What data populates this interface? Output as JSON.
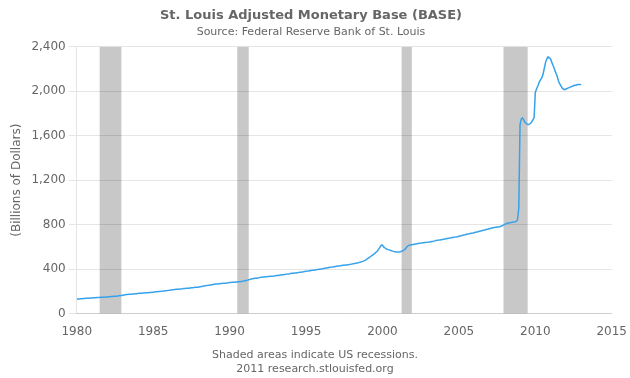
{
  "chart_data": {
    "type": "line",
    "title": "St. Louis Adjusted Monetary Base (BASE)",
    "subtitle": "Source: Federal Reserve Bank of St. Louis",
    "y_label": "(Billions of Dollars)",
    "annotations": [
      "Shaded areas indicate US recessions.",
      "2011 research.stlouisfed.org"
    ],
    "xlim": [
      1980,
      2015
    ],
    "xticks": [
      1980,
      1985,
      1990,
      1995,
      2000,
      2005,
      2010,
      2015
    ],
    "ylim": [
      0,
      2400
    ],
    "yticks": [
      0,
      400,
      800,
      {
        "value": 1200,
        "label": "1,200"
      },
      {
        "value": 1600,
        "label": "1,600"
      },
      {
        "value": 2000,
        "label": "2,000"
      },
      {
        "value": 2400,
        "label": "2,400"
      }
    ],
    "grid": "y",
    "legend": false,
    "recessions": {
      "color": "#c8c8c8",
      "ranges": [
        [
          1981.5,
          1982.92
        ],
        [
          1990.5,
          1991.25
        ],
        [
          2001.25,
          2001.92
        ],
        [
          2007.92,
          2009.5
        ]
      ]
    },
    "x": [
      1980.0,
      1980.08,
      1980.17,
      1980.25,
      1980.33,
      1980.42,
      1980.5,
      1980.58,
      1980.67,
      1980.75,
      1980.83,
      1980.92,
      1981.0,
      1981.08,
      1981.17,
      1981.25,
      1981.33,
      1981.42,
      1981.5,
      1981.58,
      1981.67,
      1981.75,
      1981.83,
      1981.92,
      1982.0,
      1982.08,
      1982.17,
      1982.25,
      1982.33,
      1982.42,
      1982.5,
      1982.58,
      1982.67,
      1982.75,
      1982.83,
      1982.92,
      1983.0,
      1983.08,
      1983.17,
      1983.25,
      1983.33,
      1983.42,
      1983.5,
      1983.58,
      1983.67,
      1983.75,
      1983.83,
      1983.92,
      1984.0,
      1984.08,
      1984.17,
      1984.25,
      1984.33,
      1984.42,
      1984.5,
      1984.58,
      1984.67,
      1984.75,
      1984.83,
      1984.92,
      1985.0,
      1985.08,
      1985.17,
      1985.25,
      1985.33,
      1985.42,
      1985.5,
      1985.58,
      1985.67,
      1985.75,
      1985.83,
      1985.92,
      1986.0,
      1986.08,
      1986.17,
      1986.25,
      1986.33,
      1986.42,
      1986.5,
      1986.58,
      1986.67,
      1986.75,
      1986.83,
      1986.92,
      1987.0,
      1987.08,
      1987.17,
      1987.25,
      1987.33,
      1987.42,
      1987.5,
      1987.58,
      1987.67,
      1987.75,
      1987.83,
      1987.92,
      1988.0,
      1988.08,
      1988.17,
      1988.25,
      1988.33,
      1988.42,
      1988.5,
      1988.58,
      1988.67,
      1988.75,
      1988.83,
      1988.92,
      1989.0,
      1989.08,
      1989.17,
      1989.25,
      1989.33,
      1989.42,
      1989.5,
      1989.58,
      1989.67,
      1989.75,
      1989.83,
      1989.92,
      1990.0,
      1990.08,
      1990.17,
      1990.25,
      1990.33,
      1990.42,
      1990.5,
      1990.58,
      1990.67,
      1990.75,
      1990.83,
      1990.92,
      1991.0,
      1991.08,
      1991.17,
      1991.25,
      1991.33,
      1991.42,
      1991.5,
      1991.58,
      1991.67,
      1991.75,
      1991.83,
      1991.92,
      1992.0,
      1992.08,
      1992.17,
      1992.25,
      1992.33,
      1992.42,
      1992.5,
      1992.58,
      1992.67,
      1992.75,
      1992.83,
      1992.92,
      1993.0,
      1993.08,
      1993.17,
      1993.25,
      1993.33,
      1993.42,
      1993.5,
      1993.58,
      1993.67,
      1993.75,
      1993.83,
      1993.92,
      1994.0,
      1994.08,
      1994.17,
      1994.25,
      1994.33,
      1994.42,
      1994.5,
      1994.58,
      1994.67,
      1994.75,
      1994.83,
      1994.92,
      1995.0,
      1995.08,
      1995.17,
      1995.25,
      1995.33,
      1995.42,
      1995.5,
      1995.58,
      1995.67,
      1995.75,
      1995.83,
      1995.92,
      1996.0,
      1996.08,
      1996.17,
      1996.25,
      1996.33,
      1996.42,
      1996.5,
      1996.58,
      1996.67,
      1996.75,
      1996.83,
      1996.92,
      1997.0,
      1997.08,
      1997.17,
      1997.25,
      1997.33,
      1997.42,
      1997.5,
      1997.58,
      1997.67,
      1997.75,
      1997.83,
      1997.92,
      1998.0,
      1998.08,
      1998.17,
      1998.25,
      1998.33,
      1998.42,
      1998.5,
      1998.58,
      1998.67,
      1998.75,
      1998.83,
      1998.92,
      1999.0,
      1999.08,
      1999.17,
      1999.25,
      1999.33,
      1999.42,
      1999.5,
      1999.58,
      1999.67,
      1999.75,
      1999.83,
      1999.92,
      2000.0,
      2000.08,
      2000.17,
      2000.25,
      2000.33,
      2000.42,
      2000.5,
      2000.58,
      2000.67,
      2000.75,
      2000.83,
      2000.92,
      2001.0,
      2001.08,
      2001.17,
      2001.25,
      2001.33,
      2001.42,
      2001.5,
      2001.58,
      2001.67,
      2001.75,
      2001.83,
      2001.92,
      2002.0,
      2002.08,
      2002.17,
      2002.25,
      2002.33,
      2002.42,
      2002.5,
      2002.58,
      2002.67,
      2002.75,
      2002.83,
      2002.92,
      2003.0,
      2003.08,
      2003.17,
      2003.25,
      2003.33,
      2003.42,
      2003.5,
      2003.58,
      2003.67,
      2003.75,
      2003.83,
      2003.92,
      2004.0,
      2004.08,
      2004.17,
      2004.25,
      2004.33,
      2004.42,
      2004.5,
      2004.58,
      2004.67,
      2004.75,
      2004.83,
      2004.92,
      2005.0,
      2005.08,
      2005.17,
      2005.25,
      2005.33,
      2005.42,
      2005.5,
      2005.58,
      2005.67,
      2005.75,
      2005.83,
      2005.92,
      2006.0,
      2006.08,
      2006.17,
      2006.25,
      2006.33,
      2006.42,
      2006.5,
      2006.58,
      2006.67,
      2006.75,
      2006.83,
      2006.92,
      2007.0,
      2007.08,
      2007.17,
      2007.25,
      2007.33,
      2007.42,
      2007.5,
      2007.58,
      2007.67,
      2007.75,
      2007.83,
      2007.92,
      2008.0,
      2008.08,
      2008.17,
      2008.25,
      2008.33,
      2008.42,
      2008.5,
      2008.58,
      2008.67,
      2008.75,
      2008.83,
      2008.92,
      2009.0,
      2009.08,
      2009.17,
      2009.25,
      2009.33,
      2009.42,
      2009.5,
      2009.58,
      2009.67,
      2009.75,
      2009.83,
      2009.92,
      2010.0,
      2010.08,
      2010.17,
      2010.25,
      2010.33,
      2010.42,
      2010.5,
      2010.58,
      2010.67,
      2010.75,
      2010.83,
      2010.92,
      2011.0,
      2011.08,
      2011.17,
      2011.25,
      2011.33,
      2011.42,
      2011.5,
      2011.58,
      2011.67,
      2011.75,
      2011.83,
      2011.92,
      2012.0,
      2012.08,
      2012.17,
      2012.25,
      2012.33,
      2012.42,
      2012.5,
      2012.58,
      2012.67,
      2012.75,
      2012.83,
      2012.92,
      2013.0
    ],
    "values": [
      130,
      131,
      132,
      133,
      134,
      135,
      136,
      137,
      137,
      138,
      139,
      140,
      141,
      142,
      143,
      143,
      144,
      145,
      145,
      146,
      147,
      148,
      148,
      149,
      150,
      151,
      152,
      153,
      154,
      155,
      156,
      157,
      158,
      160,
      161,
      163,
      165,
      167,
      169,
      171,
      172,
      173,
      174,
      175,
      176,
      177,
      178,
      179,
      181,
      182,
      183,
      184,
      185,
      186,
      187,
      188,
      188,
      189,
      190,
      191,
      193,
      195,
      196,
      197,
      198,
      199,
      200,
      202,
      203,
      205,
      206,
      207,
      209,
      211,
      212,
      214,
      215,
      217,
      218,
      219,
      220,
      221,
      222,
      223,
      225,
      226,
      227,
      228,
      229,
      231,
      232,
      233,
      234,
      236,
      237,
      238,
      240,
      242,
      244,
      246,
      248,
      250,
      252,
      254,
      256,
      258,
      260,
      262,
      264,
      266,
      267,
      268,
      269,
      270,
      271,
      272,
      273,
      274,
      275,
      277,
      279,
      280,
      281,
      282,
      283,
      284,
      285,
      286,
      287,
      288,
      290,
      292,
      295,
      298,
      301,
      305,
      308,
      311,
      313,
      315,
      317,
      319,
      321,
      323,
      326,
      328,
      329,
      330,
      331,
      332,
      333,
      334,
      335,
      336,
      337,
      338,
      340,
      342,
      343,
      345,
      347,
      349,
      350,
      351,
      353,
      355,
      357,
      358,
      360,
      362,
      364,
      365,
      366,
      368,
      369,
      371,
      373,
      375,
      376,
      378,
      380,
      382,
      384,
      386,
      388,
      390,
      391,
      393,
      395,
      396,
      398,
      399,
      401,
      404,
      406,
      408,
      410,
      412,
      414,
      416,
      418,
      420,
      422,
      424,
      426,
      428,
      429,
      430,
      432,
      434,
      435,
      437,
      438,
      440,
      441,
      443,
      445,
      448,
      450,
      453,
      456,
      458,
      461,
      464,
      468,
      472,
      477,
      483,
      492,
      500,
      508,
      516,
      524,
      533,
      542,
      552,
      563,
      578,
      595,
      615,
      617,
      600,
      590,
      583,
      578,
      573,
      570,
      566,
      562,
      559,
      557,
      555,
      554,
      555,
      557,
      560,
      565,
      572,
      582,
      598,
      610,
      615,
      618,
      620,
      622,
      624,
      626,
      628,
      630,
      632,
      634,
      636,
      638,
      639,
      640,
      641,
      643,
      645,
      647,
      649,
      651,
      654,
      657,
      659,
      661,
      663,
      665,
      667,
      669,
      671,
      673,
      675,
      677,
      679,
      682,
      684,
      686,
      688,
      690,
      692,
      695,
      698,
      701,
      704,
      707,
      710,
      713,
      716,
      718,
      721,
      723,
      725,
      728,
      731,
      734,
      737,
      740,
      743,
      746,
      749,
      752,
      755,
      758,
      761,
      764,
      767,
      770,
      772,
      774,
      776,
      778,
      780,
      782,
      785,
      790,
      796,
      803,
      808,
      812,
      815,
      818,
      820,
      822,
      824,
      826,
      830,
      840,
      950,
      1700,
      1750,
      1760,
      1740,
      1720,
      1710,
      1700,
      1700,
      1710,
      1720,
      1740,
      1760,
      1990,
      2020,
      2050,
      2080,
      2100,
      2120,
      2150,
      2200,
      2260,
      2290,
      2310,
      2300,
      2290,
      2260,
      2230,
      2200,
      2170,
      2140,
      2100,
      2070,
      2050,
      2030,
      2020,
      2015,
      2020,
      2025,
      2030,
      2035,
      2040,
      2045,
      2050,
      2055,
      2055,
      2060,
      2060,
      2060,
      2060
    ]
  }
}
